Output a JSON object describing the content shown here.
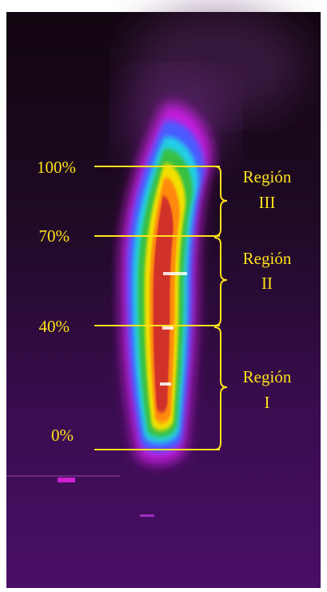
{
  "scale_labels": [
    "100%",
    "70%",
    "40%",
    "0%"
  ],
  "regions": [
    {
      "label": "Región",
      "numeral": "III"
    },
    {
      "label": "Región",
      "numeral": "II"
    },
    {
      "label": "Región",
      "numeral": "I"
    }
  ]
}
